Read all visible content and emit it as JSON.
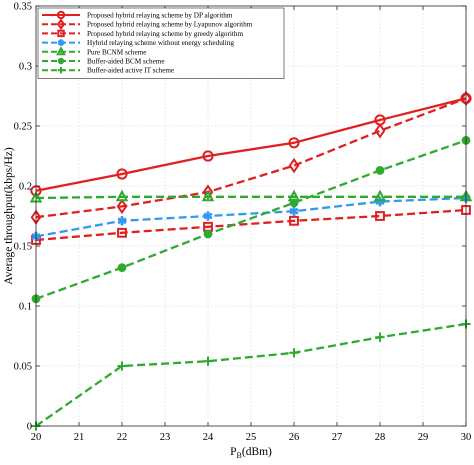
{
  "chart_data": {
    "type": "line",
    "title": "",
    "xlabel": "P",
    "xlabel_sub": "B",
    "xlabel_unit": "(dBm)",
    "ylabel": "Average throughput(kbps/Hz)",
    "xlim": [
      20,
      30
    ],
    "ylim": [
      0,
      0.35
    ],
    "x_ticks": [
      "20",
      "21",
      "22",
      "23",
      "24",
      "25",
      "26",
      "27",
      "28",
      "29",
      "30"
    ],
    "y_ticks": [
      "0",
      "0.05",
      "0.1",
      "0.15",
      "0.2",
      "0.25",
      "0.3",
      "0.35"
    ],
    "grid": true,
    "legend_position": "top-left",
    "x": [
      20,
      22,
      24,
      26,
      28,
      30
    ],
    "series": [
      {
        "name": "Proposed hybrid relaying scheme by DP algorithm",
        "values": [
          0.196,
          0.21,
          0.225,
          0.236,
          0.255,
          0.273
        ],
        "color": "#e02020",
        "dash": "solid",
        "marker": "circle"
      },
      {
        "name": "Proposed hybrid relaying scheme by Lyapunov algorithm",
        "values": [
          0.174,
          0.183,
          0.195,
          0.217,
          0.246,
          0.273
        ],
        "color": "#e02020",
        "dash": "dashed",
        "marker": "diamond"
      },
      {
        "name": "Proposed hybrid relaying scheme by greedy algorithm",
        "values": [
          0.155,
          0.161,
          0.166,
          0.171,
          0.175,
          0.18
        ],
        "color": "#e02020",
        "dash": "dashed",
        "marker": "square"
      },
      {
        "name": "Hybrid relaying scheme without energy scheduling",
        "values": [
          0.158,
          0.171,
          0.175,
          0.179,
          0.187,
          0.19
        ],
        "color": "#3399ee",
        "dash": "dashed",
        "marker": "star"
      },
      {
        "name": "Pure BCNM scheme",
        "values": [
          0.19,
          0.191,
          0.191,
          0.191,
          0.191,
          0.191
        ],
        "color": "#2eaa2e",
        "dash": "dashed",
        "marker": "triangle"
      },
      {
        "name": "Buffer-aided BCM scheme",
        "values": [
          0.106,
          0.132,
          0.16,
          0.186,
          0.213,
          0.238
        ],
        "color": "#2eaa2e",
        "dash": "dashed",
        "marker": "dot"
      },
      {
        "name": "Buffer-aided active IT scheme",
        "values": [
          0.0,
          0.05,
          0.054,
          0.061,
          0.074,
          0.085
        ],
        "color": "#2eaa2e",
        "dash": "dashed",
        "marker": "plus"
      }
    ]
  }
}
